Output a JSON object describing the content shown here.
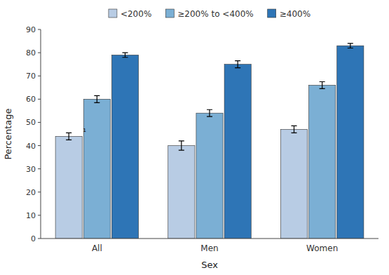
{
  "chart_data": {
    "type": "bar",
    "categories": [
      "All",
      "Men",
      "Women"
    ],
    "series": [
      {
        "name": "<200%",
        "color": "#b8cce4",
        "values": [
          44,
          40,
          47
        ],
        "errors": [
          1.5,
          2.0,
          1.5
        ]
      },
      {
        "name": "≥200% to <400%",
        "color": "#7bafd4",
        "values": [
          60,
          54,
          66
        ],
        "errors": [
          1.5,
          1.5,
          1.5
        ]
      },
      {
        "name": "≥400%",
        "color": "#2e75b6",
        "values": [
          79,
          75,
          83
        ],
        "errors": [
          1.0,
          1.5,
          1.0
        ]
      }
    ],
    "xlabel": "Sex",
    "ylabel": "Percentage",
    "ylim": [
      0,
      90
    ],
    "yticks": [
      0,
      10,
      20,
      30,
      40,
      50,
      60,
      70,
      80,
      90
    ],
    "grid": false,
    "legend": "top",
    "annotations": [
      {
        "text": "¹",
        "category": "All",
        "series": "<200%"
      }
    ]
  }
}
